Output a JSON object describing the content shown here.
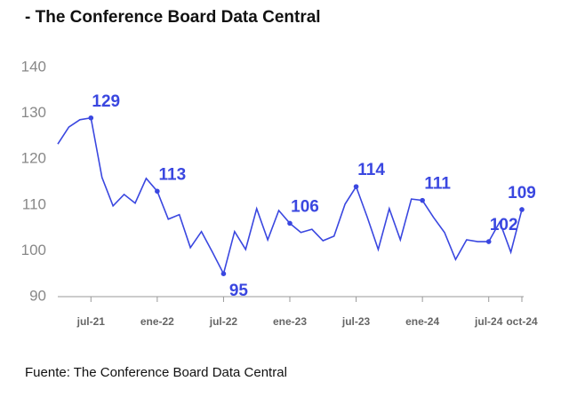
{
  "chart_data": {
    "type": "line",
    "title": "- The Conference Board Data Central",
    "source": "Fuente: The Conference Board Data Central",
    "categories": [
      null,
      null,
      null,
      "jul-21",
      null,
      null,
      null,
      null,
      null,
      "ene-22",
      null,
      null,
      null,
      null,
      null,
      "jul-22",
      null,
      null,
      null,
      null,
      null,
      "ene-23",
      null,
      null,
      null,
      null,
      null,
      "jul-23",
      null,
      null,
      null,
      null,
      null,
      "ene-24",
      null,
      null,
      null,
      null,
      null,
      "jul-24",
      null,
      null,
      "oct-24"
    ],
    "series": [
      {
        "name": "Conference Board",
        "color": "#3a47e0",
        "values": [
          123.3,
          127,
          128.6,
          129,
          116,
          109.8,
          112.3,
          110.4,
          115.8,
          113,
          106.9,
          107.9,
          100.7,
          104.2,
          99.7,
          95,
          104.2,
          100.3,
          109.2,
          102.4,
          108.8,
          106,
          104,
          104.7,
          102.2,
          103.2,
          110.2,
          114,
          107.4,
          100.3,
          109.2,
          102.4,
          111.3,
          111,
          107.3,
          104,
          98.1,
          102.4,
          102,
          102,
          106.3,
          99.7,
          109
        ],
        "value_labels": [
          null,
          null,
          null,
          "129",
          null,
          null,
          null,
          null,
          null,
          "113",
          null,
          null,
          null,
          null,
          null,
          "95",
          null,
          null,
          null,
          null,
          null,
          "106",
          null,
          null,
          null,
          null,
          null,
          "114",
          null,
          null,
          null,
          null,
          null,
          "111",
          null,
          null,
          null,
          null,
          null,
          "102",
          null,
          null,
          "109"
        ]
      }
    ],
    "ylim": [
      90,
      140
    ],
    "yticks": [
      90,
      100,
      110,
      120,
      130,
      140
    ],
    "grid": false
  }
}
